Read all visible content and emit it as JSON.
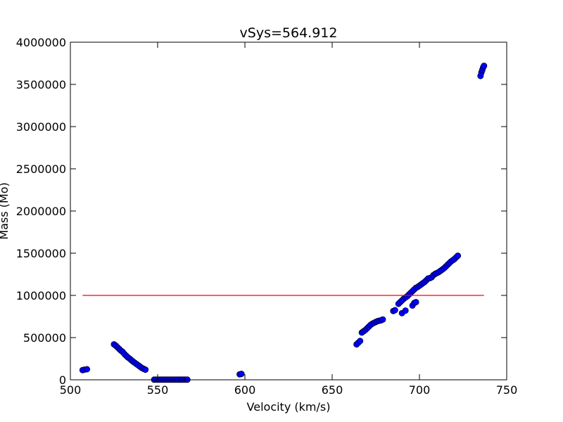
{
  "chart_data": {
    "type": "scatter",
    "title": "vSys=564.912",
    "xlabel": "Velocity (km/s)",
    "ylabel": "Mass (Mo)",
    "xlim": [
      500,
      750
    ],
    "ylim": [
      0,
      4000000
    ],
    "xticks": [
      500,
      550,
      600,
      650,
      700,
      750
    ],
    "yticks": [
      0,
      500000,
      1000000,
      1500000,
      2000000,
      2500000,
      3000000,
      3500000,
      4000000
    ],
    "grid": false,
    "series": [
      {
        "kind": "scatter",
        "color": "#0000ff",
        "edge_color": "#000000",
        "x": [
          507,
          508,
          509.5,
          525,
          526,
          527,
          528,
          529,
          530,
          531,
          532,
          533,
          534,
          535,
          536,
          537,
          538,
          539,
          540,
          541,
          542,
          543,
          548,
          549,
          550,
          551,
          552,
          553,
          554,
          555,
          556,
          557,
          558,
          559,
          560,
          561,
          562,
          563,
          564,
          565,
          566,
          567,
          597,
          598,
          664,
          665,
          666,
          667,
          668,
          669,
          670,
          671,
          672,
          673,
          674,
          675,
          676,
          677,
          678,
          679,
          685,
          686,
          688,
          689,
          690,
          691,
          692,
          693,
          694,
          695,
          696,
          697,
          698,
          699,
          700,
          701,
          702,
          703,
          704,
          705,
          706,
          707,
          708,
          709,
          710,
          711,
          712,
          713,
          714,
          715,
          716,
          717,
          718,
          719,
          720,
          721,
          722,
          690,
          692,
          696,
          697,
          698,
          735,
          735.5,
          736,
          736.5,
          737
        ],
        "y": [
          115000,
          120000,
          125000,
          420000,
          405000,
          385000,
          365000,
          345000,
          330000,
          305000,
          285000,
          265000,
          250000,
          232000,
          215000,
          200000,
          185000,
          170000,
          155000,
          140000,
          130000,
          120000,
          2000,
          2000,
          2000,
          2000,
          2000,
          2000,
          2000,
          2000,
          2000,
          2000,
          2000,
          2000,
          2000,
          2000,
          2000,
          2000,
          2000,
          2000,
          2000,
          2000,
          65000,
          70000,
          420000,
          440000,
          460000,
          560000,
          575000,
          590000,
          610000,
          630000,
          650000,
          665000,
          675000,
          685000,
          695000,
          700000,
          705000,
          715000,
          815000,
          825000,
          900000,
          920000,
          940000,
          960000,
          975000,
          990000,
          1010000,
          1030000,
          1050000,
          1070000,
          1090000,
          1100000,
          1115000,
          1130000,
          1145000,
          1160000,
          1180000,
          1200000,
          1205000,
          1215000,
          1240000,
          1255000,
          1265000,
          1275000,
          1290000,
          1305000,
          1320000,
          1340000,
          1360000,
          1380000,
          1400000,
          1415000,
          1430000,
          1450000,
          1470000,
          790000,
          820000,
          880000,
          910000,
          920000,
          3600000,
          3640000,
          3670000,
          3700000,
          3720000
        ]
      },
      {
        "kind": "line",
        "color": "#ff0000",
        "x": [
          507,
          737
        ],
        "y": [
          1000000,
          1000000
        ]
      }
    ]
  }
}
